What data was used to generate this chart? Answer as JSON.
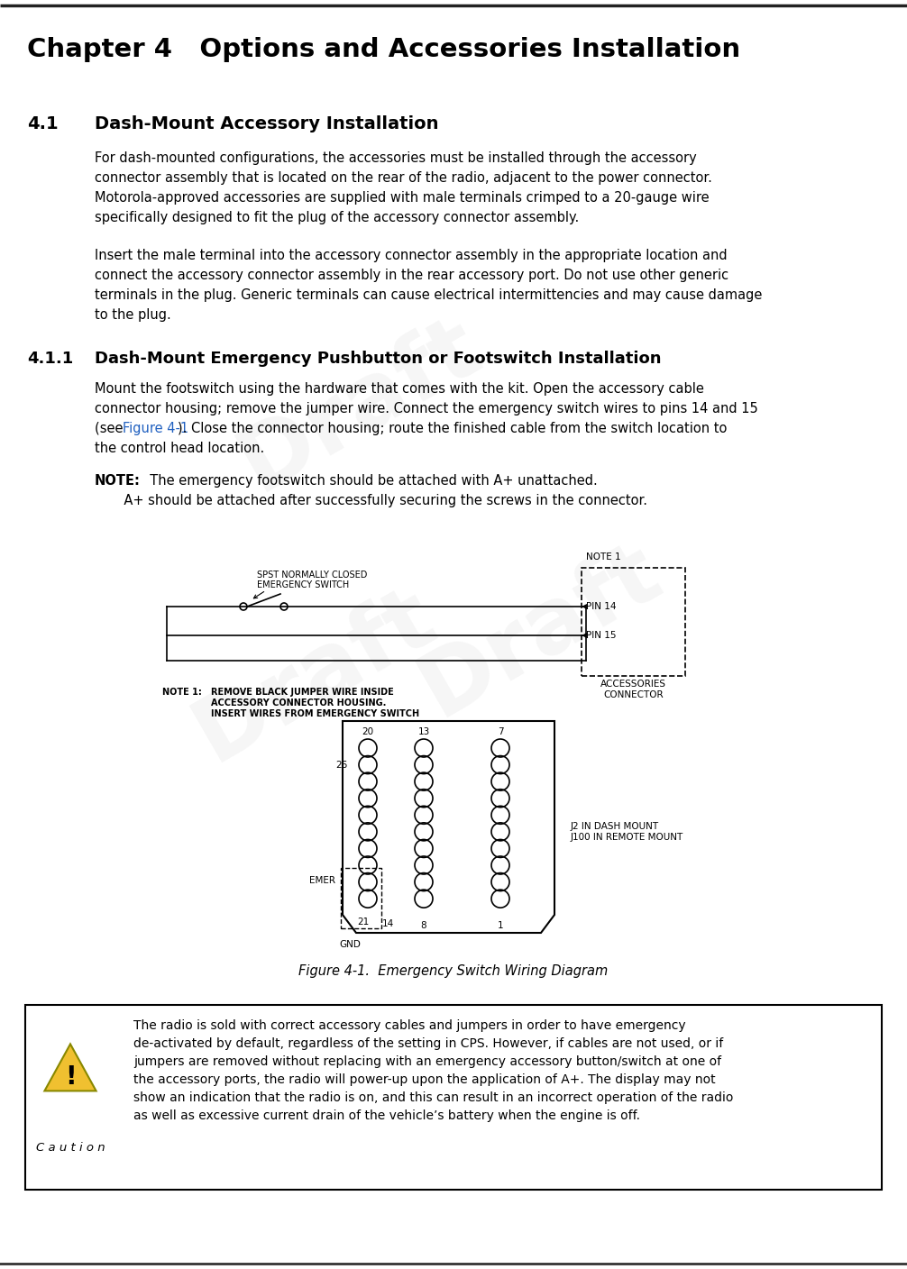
{
  "title": "Chapter 4   Options and Accessories Installation",
  "sec41_num": "4.1",
  "sec41_title": "Dash-Mount Accessory Installation",
  "para_41_1_lines": [
    "For dash-mounted configurations, the accessories must be installed through the accessory",
    "connector assembly that is located on the rear of the radio, adjacent to the power connector.",
    "Motorola-approved accessories are supplied with male terminals crimped to a 20-gauge wire",
    "specifically designed to fit the plug of the accessory connector assembly."
  ],
  "para_41_2_lines": [
    "Insert the male terminal into the accessory connector assembly in the appropriate location and",
    "connect the accessory connector assembly in the rear accessory port. Do not use other generic",
    "terminals in the plug. Generic terminals can cause electrical intermittencies and may cause damage",
    "to the plug."
  ],
  "sec411_num": "4.1.1",
  "sec411_title": "Dash-Mount Emergency Pushbutton or Footswitch Installation",
  "para_411_lines": [
    "Mount the footswitch using the hardware that comes with the kit. Open the accessory cable",
    "connector housing; remove the jumper wire. Connect the emergency switch wires to pins 14 and 15",
    "(see @@Figure 4-1@@). Close the connector housing; route the finished cable from the switch location to",
    "the control head location."
  ],
  "note_line1": "  The emergency footswitch should be attached with A+ unattached.",
  "note_line2": "       A+ should be attached after successfully securing the screws in the connector.",
  "figure_caption": "Figure 4-1.  Emergency Switch Wiring Diagram",
  "caution_lines": [
    "The radio is sold with correct accessory cables and jumpers in order to have emergency",
    "de-activated by default, regardless of the setting in CPS. However, if cables are not used, or if",
    "jumpers are removed without replacing with an emergency accessory button/switch at one of",
    "the accessory ports, the radio will power-up upon the application of A+. The display may not",
    "show an indication that the radio is on, and this can result in an incorrect operation of the radio",
    "as well as excessive current drain of the vehicle’s battery when the engine is off."
  ],
  "bg_color": "#ffffff",
  "text_color": "#000000",
  "link_color": "#2060c0",
  "watermark_color": "#cccccc"
}
